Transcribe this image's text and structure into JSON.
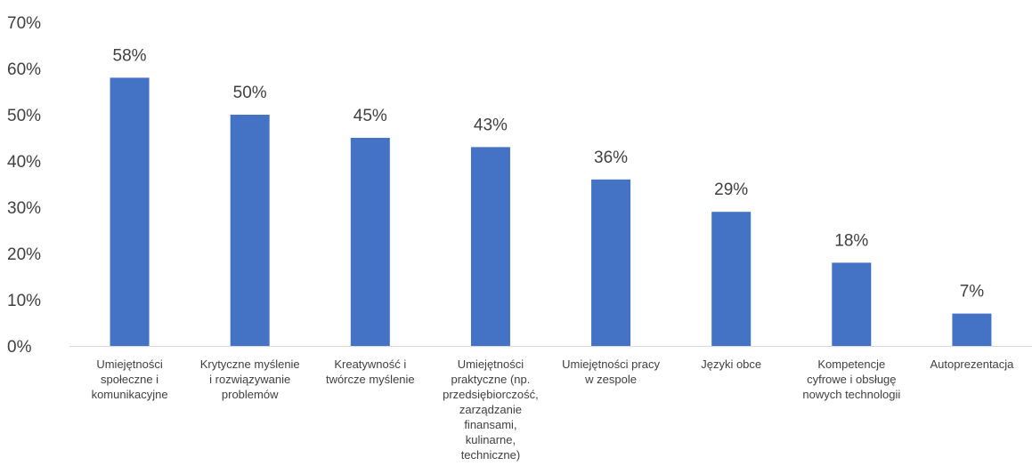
{
  "chart_data": {
    "type": "bar",
    "categories": [
      [
        "Umiejętności",
        "społeczne i",
        "komunikacyjne"
      ],
      [
        "Krytyczne myślenie",
        "i rozwiązywanie",
        "problemów"
      ],
      [
        "Kreatywność i",
        "twórcze myślenie"
      ],
      [
        "Umiejętności",
        "praktyczne (np.",
        "przedsiębiorczość,",
        "zarządzanie",
        "finansami,",
        "kulinarne,",
        "techniczne)"
      ],
      [
        "Umiejętności pracy",
        "w zespole"
      ],
      [
        "Języki obce"
      ],
      [
        "Kompetencje",
        "cyfrowe i obsługę",
        "nowych technologii"
      ],
      [
        "Autoprezentacja"
      ]
    ],
    "values": [
      58,
      50,
      45,
      43,
      36,
      29,
      18,
      7
    ],
    "data_labels": [
      "58%",
      "50%",
      "45%",
      "43%",
      "36%",
      "29%",
      "18%",
      "7%"
    ],
    "yticks": [
      "0%",
      "10%",
      "20%",
      "30%",
      "40%",
      "50%",
      "60%",
      "70%"
    ],
    "ylim": [
      0,
      70
    ],
    "grid": false,
    "legend": "none",
    "bar_color": "#4472C4",
    "axis_color": "#D9D9D9",
    "text_color": "#404040"
  }
}
